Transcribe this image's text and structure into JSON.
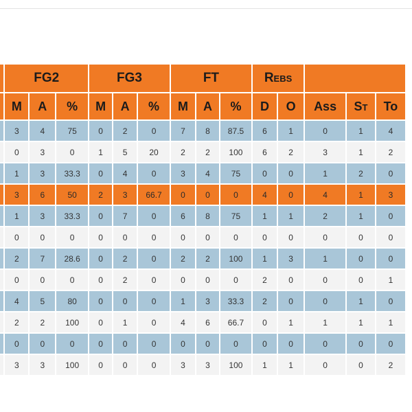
{
  "table": {
    "groups": [
      {
        "label": ""
      },
      {
        "label": "FG2"
      },
      {
        "label": "FG3"
      },
      {
        "label": "FT"
      },
      {
        "label": "Rebs"
      },
      {
        "label": ""
      }
    ],
    "columns": [
      "",
      "M",
      "A",
      "%",
      "M",
      "A",
      "%",
      "M",
      "A",
      "%",
      "D",
      "O",
      "Ass",
      "St",
      "To"
    ],
    "rows": [
      {
        "style": "blue",
        "cells": [
          "",
          "3",
          "4",
          "75",
          "0",
          "2",
          "0",
          "7",
          "8",
          "87.5",
          "6",
          "1",
          "0",
          "1",
          "4"
        ]
      },
      {
        "style": "white",
        "cells": [
          "",
          "0",
          "3",
          "0",
          "1",
          "5",
          "20",
          "2",
          "2",
          "100",
          "6",
          "2",
          "3",
          "1",
          "2"
        ]
      },
      {
        "style": "blue",
        "cells": [
          "",
          "1",
          "3",
          "33.3",
          "0",
          "4",
          "0",
          "3",
          "4",
          "75",
          "0",
          "0",
          "1",
          "2",
          "0"
        ]
      },
      {
        "style": "orange",
        "cells": [
          "",
          "3",
          "6",
          "50",
          "2",
          "3",
          "66.7",
          "0",
          "0",
          "0",
          "4",
          "0",
          "4",
          "1",
          "3"
        ]
      },
      {
        "style": "blue",
        "cells": [
          "",
          "1",
          "3",
          "33.3",
          "0",
          "7",
          "0",
          "6",
          "8",
          "75",
          "1",
          "1",
          "2",
          "1",
          "0"
        ]
      },
      {
        "style": "white",
        "cells": [
          "",
          "0",
          "0",
          "0",
          "0",
          "0",
          "0",
          "0",
          "0",
          "0",
          "0",
          "0",
          "0",
          "0",
          "0"
        ]
      },
      {
        "style": "blue",
        "cells": [
          "",
          "2",
          "7",
          "28.6",
          "0",
          "2",
          "0",
          "2",
          "2",
          "100",
          "1",
          "3",
          "1",
          "0",
          "0"
        ]
      },
      {
        "style": "white",
        "cells": [
          "",
          "0",
          "0",
          "0",
          "0",
          "2",
          "0",
          "0",
          "0",
          "0",
          "2",
          "0",
          "0",
          "0",
          "1"
        ]
      },
      {
        "style": "blue",
        "cells": [
          "",
          "4",
          "5",
          "80",
          "0",
          "0",
          "0",
          "1",
          "3",
          "33.3",
          "2",
          "0",
          "0",
          "1",
          "0"
        ]
      },
      {
        "style": "white",
        "cells": [
          "",
          "2",
          "2",
          "100",
          "0",
          "1",
          "0",
          "4",
          "6",
          "66.7",
          "0",
          "1",
          "1",
          "1",
          "1"
        ]
      },
      {
        "style": "blue",
        "cells": [
          "",
          "0",
          "0",
          "0",
          "0",
          "0",
          "0",
          "0",
          "0",
          "0",
          "0",
          "0",
          "0",
          "0",
          "0"
        ]
      },
      {
        "style": "white",
        "cells": [
          "",
          "3",
          "3",
          "100",
          "0",
          "0",
          "0",
          "3",
          "3",
          "100",
          "1",
          "1",
          "0",
          "0",
          "2"
        ]
      }
    ]
  },
  "colors": {
    "header_orange": "#f07a24",
    "row_blue": "#a9c6d8",
    "row_white": "#f3f3f3",
    "highlight_orange": "#f07a24"
  }
}
